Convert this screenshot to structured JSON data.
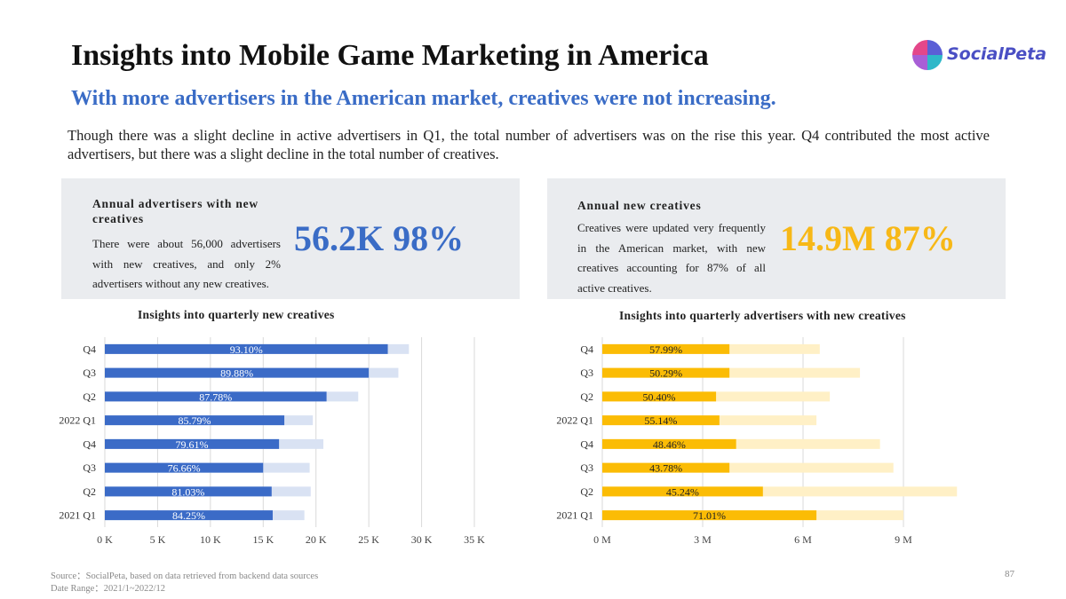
{
  "header": {
    "title": "Insights into Mobile Game Marketing in America",
    "logo_text": "SocialPeta",
    "subtitle": "With more advertisers in the American market, creatives were not increasing.",
    "intro": "Though there was a slight decline in active advertisers in Q1, the total number of advertisers was on the rise this year. Q4 contributed the most active advertisers, but there was a slight decline in the total number of creatives."
  },
  "panels": {
    "left": {
      "title": "Annual advertisers with new creatives",
      "body": "There were about 56,000 advertisers with new creatives, and only 2% advertisers without any new creatives.",
      "big": "56.2K 98%"
    },
    "right": {
      "title": "Annual new creatives",
      "body": "Creatives were updated very frequently in the American market, with new creatives accounting for 87% of all active creatives.",
      "big": "14.9M 87%"
    }
  },
  "colors": {
    "blue": "#3b6bc7",
    "blue_light": "#d9e2f3",
    "yellow": "#fbbc05",
    "yellow_light": "#fff0c6"
  },
  "chart_data": [
    {
      "type": "bar",
      "orientation": "horizontal",
      "title": "Insights into quarterly new creatives",
      "categories": [
        "2021 Q1",
        "Q2",
        "Q3",
        "Q4",
        "2022 Q1",
        "Q2",
        "Q3",
        "Q4"
      ],
      "series": [
        {
          "values": [
            15.9,
            15.8,
            15.0,
            16.5,
            17.0,
            21.0,
            25.0,
            26.8
          ]
        },
        {
          "values": [
            18.9,
            19.5,
            19.4,
            20.7,
            19.7,
            24.0,
            27.8,
            28.8
          ]
        }
      ],
      "data_labels": [
        "84.25%",
        "81.03%",
        "76.66%",
        "79.61%",
        "85.79%",
        "87.78%",
        "89.88%",
        "93.10%"
      ],
      "xlim": [
        0,
        35
      ],
      "xticks": [
        "0 K",
        "5 K",
        "10 K",
        "15 K",
        "20 K",
        "25 K",
        "30 K",
        "35 K"
      ],
      "grid": true
    },
    {
      "type": "bar",
      "orientation": "horizontal",
      "title": "Insights into quarterly advertisers with new creatives",
      "categories": [
        "2021 Q1",
        "Q2",
        "Q3",
        "Q4",
        "2022 Q1",
        "Q2",
        "Q3",
        "Q4"
      ],
      "series": [
        {
          "values": [
            6.4,
            4.8,
            3.8,
            4.0,
            3.5,
            3.4,
            3.8,
            3.8
          ]
        },
        {
          "values": [
            9.0,
            10.6,
            8.7,
            8.3,
            6.4,
            6.8,
            7.7,
            6.5
          ]
        }
      ],
      "data_labels": [
        "71.01%",
        "45.24%",
        "43.78%",
        "48.46%",
        "55.14%",
        "50.40%",
        "50.29%",
        "57.99%"
      ],
      "xlim": [
        0,
        12
      ],
      "xticks": [
        "0 M",
        "3 M",
        "6 M",
        "9 M"
      ],
      "xtick_values": [
        0,
        3,
        6,
        9
      ],
      "grid": true
    }
  ],
  "footer": {
    "source": "Source：SocialPeta, based on data retrieved from backend data sources",
    "date_range": "Date Range：2021/1~2022/12",
    "page_number": "87"
  }
}
